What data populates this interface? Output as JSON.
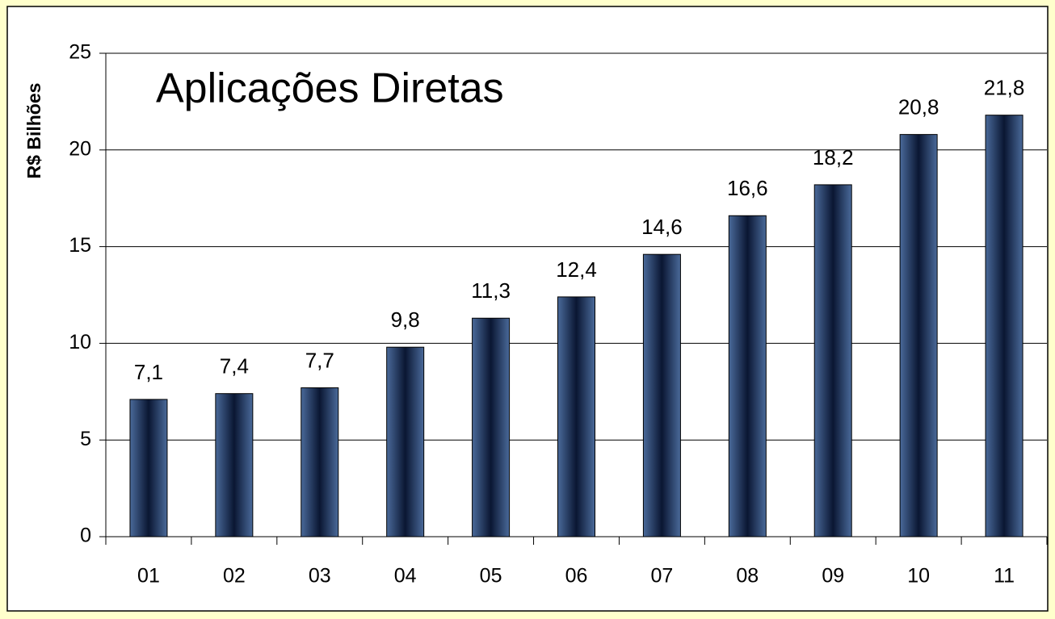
{
  "chart_data": {
    "type": "bar",
    "title": "Aplicações Diretas",
    "y_label": "R$ Bilhões",
    "categories": [
      "01",
      "02",
      "03",
      "04",
      "05",
      "06",
      "07",
      "08",
      "09",
      "10",
      "11"
    ],
    "values": [
      7.1,
      7.4,
      7.7,
      9.8,
      11.3,
      12.4,
      14.6,
      16.6,
      18.2,
      20.8,
      21.8
    ],
    "value_labels": [
      "7,1",
      "7,4",
      "7,7",
      "9,8",
      "11,3",
      "12,4",
      "14,6",
      "16,6",
      "18,2",
      "20,8",
      "21,8"
    ],
    "color": "#0a1632",
    "ylim": [
      0,
      25
    ],
    "yticks": [
      0,
      5,
      10,
      15,
      20,
      25
    ],
    "grid": true
  }
}
